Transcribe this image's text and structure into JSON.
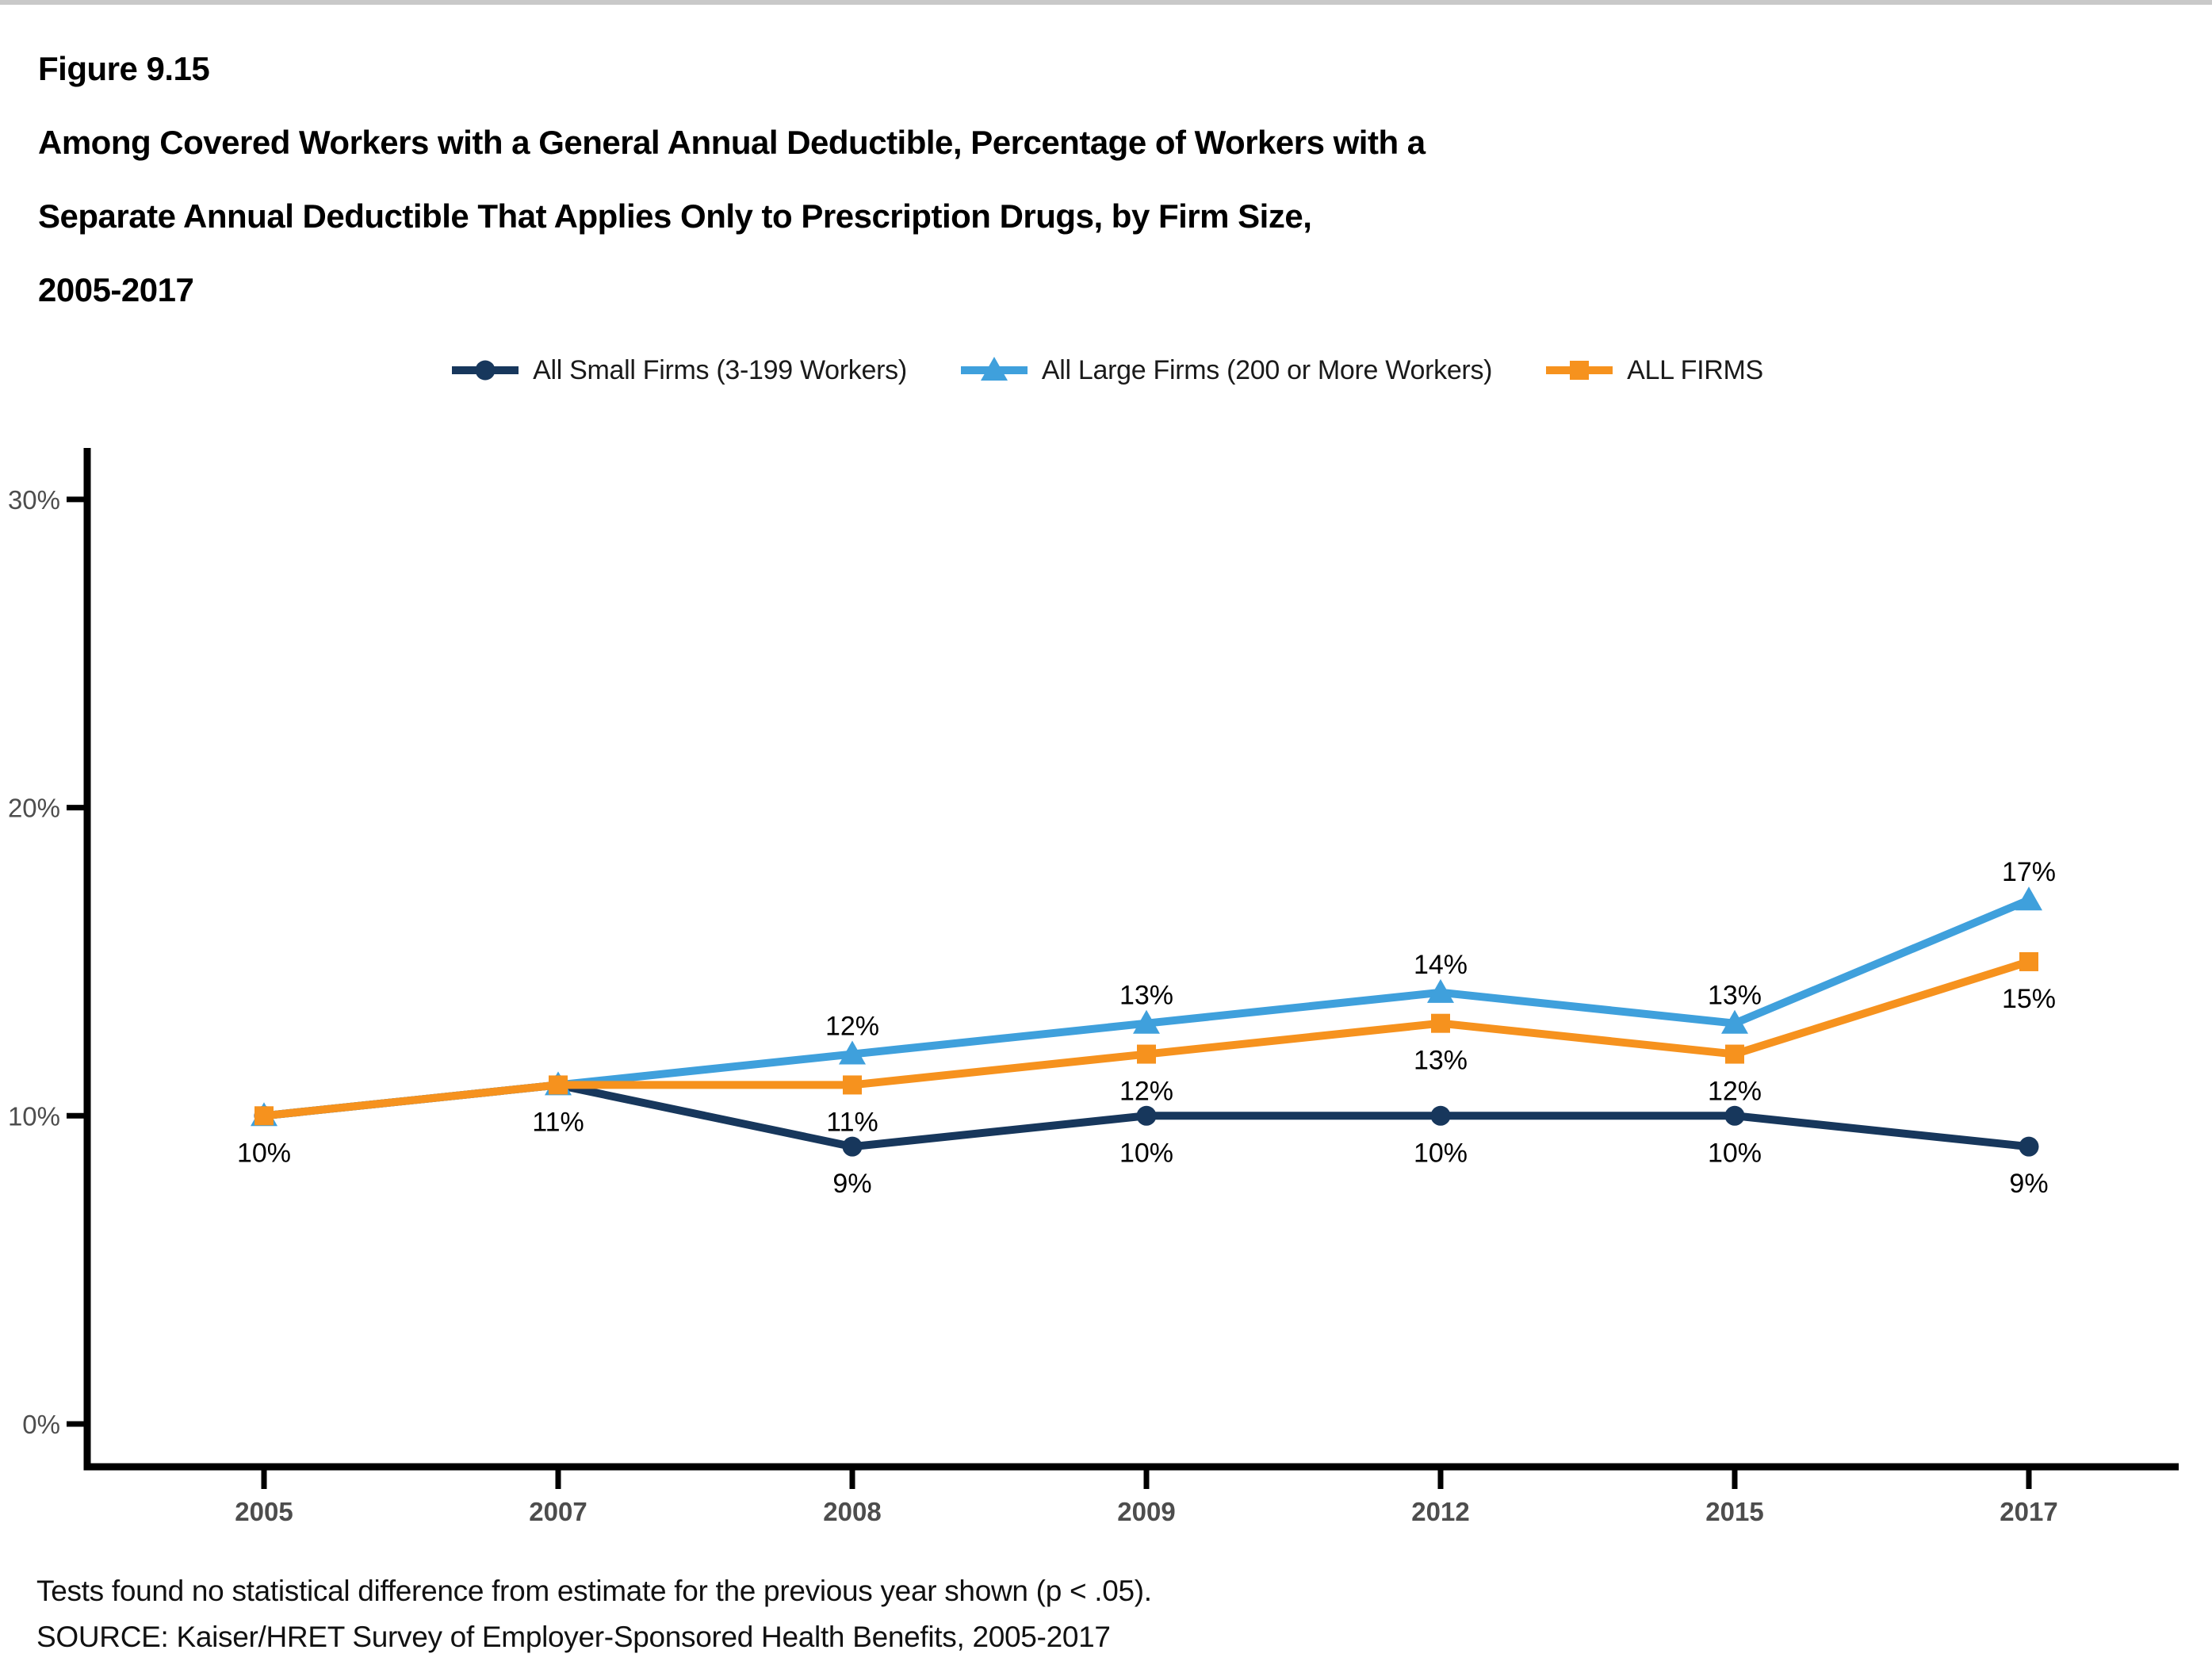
{
  "figure": {
    "label": "Figure 9.15",
    "title_lines": [
      "Among Covered Workers with a General Annual Deductible, Percentage of Workers with a",
      "Separate Annual Deductible That Applies Only to Prescription Drugs, by Firm Size,",
      "2005-2017"
    ]
  },
  "legend": [
    {
      "label": "All Small Firms (3-199 Workers)",
      "series": "small"
    },
    {
      "label": "All Large Firms (200 or More Workers)",
      "series": "large"
    },
    {
      "label": "ALL FIRMS",
      "series": "all"
    }
  ],
  "chart_data": {
    "type": "line",
    "categories": [
      "2005",
      "2007",
      "2008",
      "2009",
      "2012",
      "2015",
      "2017"
    ],
    "series": [
      {
        "id": "small",
        "name": "All Small Firms (3-199 Workers)",
        "color": "#17375C",
        "marker": "circle",
        "values": [
          10,
          11,
          9,
          10,
          10,
          10,
          9
        ]
      },
      {
        "id": "large",
        "name": "All Large Firms (200 or More Workers)",
        "color": "#3FA0DC",
        "marker": "triangle",
        "values": [
          10,
          11,
          12,
          13,
          14,
          13,
          17
        ]
      },
      {
        "id": "all",
        "name": "ALL FIRMS",
        "color": "#F6921E",
        "marker": "square",
        "values": [
          10,
          11,
          11,
          12,
          13,
          12,
          15
        ]
      }
    ],
    "title": "Among Covered Workers with a General Annual Deductible, Percentage of Workers with a Separate Annual Deductible That Applies Only to Prescription Drugs, by Firm Size, 2005-2017",
    "xlabel": "",
    "ylabel": "",
    "ylim": [
      0,
      32
    ],
    "yticks": [
      {
        "value": 0,
        "label": "0%"
      },
      {
        "value": 10,
        "label": "10%"
      },
      {
        "value": 20,
        "label": "20%"
      },
      {
        "value": 30,
        "label": "30%"
      }
    ],
    "grid": false,
    "legend_position": "top",
    "axis_color": "#000000",
    "tick_label_color": "#4d4d4d",
    "value_labels": [
      {
        "year": "2005",
        "series": "all",
        "text": "10%",
        "position": "below"
      },
      {
        "year": "2007",
        "series": "all",
        "text": "11%",
        "position": "below"
      },
      {
        "year": "2008",
        "series": "large",
        "text": "12%",
        "position": "above"
      },
      {
        "year": "2008",
        "series": "all",
        "text": "11%",
        "position": "below"
      },
      {
        "year": "2008",
        "series": "small",
        "text": "9%",
        "position": "below"
      },
      {
        "year": "2009",
        "series": "large",
        "text": "13%",
        "position": "above"
      },
      {
        "year": "2009",
        "series": "all",
        "text": "12%",
        "position": "below"
      },
      {
        "year": "2009",
        "series": "small",
        "text": "10%",
        "position": "below"
      },
      {
        "year": "2012",
        "series": "large",
        "text": "14%",
        "position": "above"
      },
      {
        "year": "2012",
        "series": "all",
        "text": "13%",
        "position": "below"
      },
      {
        "year": "2012",
        "series": "small",
        "text": "10%",
        "position": "below"
      },
      {
        "year": "2015",
        "series": "large",
        "text": "13%",
        "position": "above"
      },
      {
        "year": "2015",
        "series": "all",
        "text": "12%",
        "position": "below"
      },
      {
        "year": "2015",
        "series": "small",
        "text": "10%",
        "position": "below"
      },
      {
        "year": "2017",
        "series": "large",
        "text": "17%",
        "position": "above"
      },
      {
        "year": "2017",
        "series": "all",
        "text": "15%",
        "position": "below"
      },
      {
        "year": "2017",
        "series": "small",
        "text": "9%",
        "position": "below"
      }
    ]
  },
  "footer": {
    "note": "Tests found no statistical difference from estimate for the previous year shown (p < .05).",
    "source": "SOURCE: Kaiser/HRET Survey of Employer-Sponsored Health Benefits, 2005-2017"
  }
}
